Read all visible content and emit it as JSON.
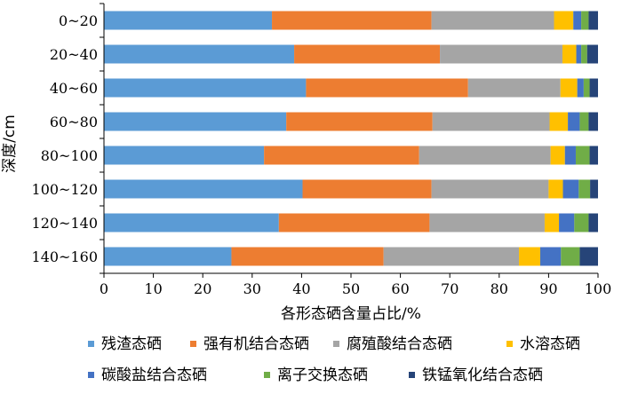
{
  "chart_data": {
    "type": "bar",
    "orientation": "horizontal",
    "stacked": true,
    "categories": [
      "0~20",
      "20~40",
      "40~60",
      "60~80",
      "80~100",
      "100~120",
      "120~140",
      "140~160"
    ],
    "series": [
      {
        "name": "残渣态硒",
        "color": "#5B9BD5",
        "values": [
          34.0,
          38.5,
          40.9,
          36.9,
          32.4,
          40.2,
          35.4,
          25.8
        ]
      },
      {
        "name": "强有机结合态硒",
        "color": "#ED7D31",
        "values": [
          32.3,
          29.5,
          32.8,
          29.6,
          31.4,
          26.1,
          30.5,
          30.8
        ]
      },
      {
        "name": "腐殖酸结合态硒",
        "color": "#A5A5A5",
        "values": [
          24.8,
          24.8,
          18.7,
          23.7,
          26.6,
          23.7,
          23.3,
          27.4
        ]
      },
      {
        "name": "水溶态硒",
        "color": "#FFC000",
        "values": [
          3.9,
          2.8,
          3.4,
          3.7,
          2.9,
          2.9,
          2.9,
          4.3
        ]
      },
      {
        "name": "碳酸盐结合态硒",
        "color": "#4472C4",
        "values": [
          1.6,
          1.0,
          1.3,
          2.4,
          2.2,
          3.2,
          3.1,
          4.2
        ]
      },
      {
        "name": "离子交换态硒",
        "color": "#70AD47",
        "values": [
          1.5,
          1.2,
          1.2,
          1.8,
          2.8,
          2.3,
          2.9,
          3.8
        ]
      },
      {
        "name": "铁锰氧化结合态硒",
        "color": "#264478",
        "values": [
          1.9,
          2.2,
          1.7,
          1.9,
          1.7,
          1.6,
          1.9,
          3.7
        ]
      }
    ],
    "xlabel": "各形态硒含量占比/%",
    "ylabel": "深度/cm",
    "xlim": [
      0,
      100
    ],
    "xticks": [
      0,
      10,
      20,
      30,
      40,
      50,
      60,
      70,
      80,
      90,
      100
    ],
    "grid": false,
    "legend_position": "bottom"
  }
}
